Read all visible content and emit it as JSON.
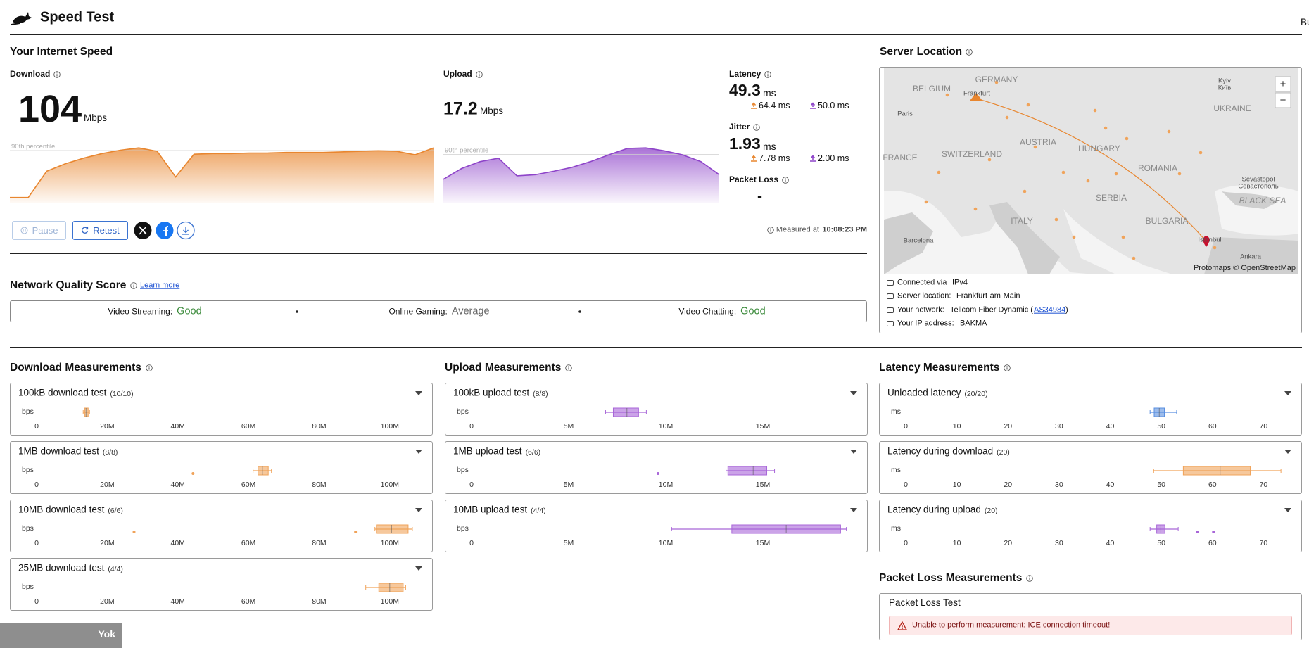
{
  "header": {
    "title": "Speed Test",
    "tagline": "Built with Cloudflare Developer Platform"
  },
  "speed": {
    "title": "Your Internet Speed",
    "download": {
      "label": "Download",
      "value": 104,
      "unit": "Mbps",
      "percentile_label": "90th percentile",
      "p90": 91,
      "ylim": [
        0,
        100
      ],
      "color": "#e8862f",
      "trend": [
        9,
        9,
        55,
        68,
        78,
        86,
        92,
        96,
        90,
        45,
        85,
        86,
        86,
        87,
        87,
        88,
        88,
        88,
        89,
        90,
        91,
        90,
        84,
        96
      ]
    },
    "upload": {
      "label": "Upload",
      "value": 17.2,
      "unit": "Mbps",
      "percentile_label": "90th percentile",
      "p90": 84,
      "ylim": [
        0,
        100
      ],
      "color": "#8e44c9",
      "trend": [
        41,
        60,
        72,
        78,
        47,
        49,
        55,
        62,
        72,
        84,
        95,
        96,
        91,
        84,
        72,
        49
      ]
    },
    "latency": {
      "label": "Latency",
      "value": 49.3,
      "unit": "ms",
      "down": "64.4 ms",
      "up": "50.0 ms"
    },
    "jitter": {
      "label": "Jitter",
      "value": 1.93,
      "unit": "ms",
      "down": "7.78 ms",
      "up": "2.00 ms"
    },
    "packet_loss": {
      "label": "Packet Loss",
      "value": "-"
    },
    "buttons": {
      "pause": "Pause",
      "retest": "Retest"
    },
    "measured_label": "Measured at",
    "measured_time": "10:08:23 PM"
  },
  "quality": {
    "title": "Network Quality Score",
    "link": "Learn more",
    "items": [
      {
        "label": "Video Streaming:",
        "value": "Good",
        "color": "#3a8a3a"
      },
      {
        "label": "Online Gaming:",
        "value": "Average",
        "color": "#666666"
      },
      {
        "label": "Video Chatting:",
        "value": "Good",
        "color": "#3a8a3a"
      }
    ]
  },
  "server": {
    "title": "Server Location",
    "map": {
      "labels": [
        "BELGIUM",
        "GERMANY",
        "Frankfurt",
        "Kyiv",
        "Київ",
        "UKRAINE",
        "Paris",
        "AUSTRIA",
        "HUNGARY",
        "FRANCE",
        "SWITZERLAND",
        "ROMANIA",
        "Sevastopol",
        "Севастополь",
        "BLACK SEA",
        "SERBIA",
        "ITALY",
        "BULGARIA",
        "Istanbul",
        "Barcelona",
        "Ankara"
      ],
      "zoom_in": "+",
      "zoom_out": "−",
      "attribution": "Protomaps © OpenStreetMap"
    },
    "info": [
      {
        "label": "Connected via",
        "value": "IPv4"
      },
      {
        "label": "Server location:",
        "value": "Frankfurt-am-Main"
      },
      {
        "label": "Your network:",
        "value": "Tellcom Fiber Dynamic (",
        "link": "AS34984",
        "suffix": ")"
      },
      {
        "label": "Your IP address:",
        "value": "BAKMA"
      }
    ]
  },
  "measurements": [
    {
      "title": "Download Measurements",
      "unit": "bps",
      "xlim": [
        0,
        110000000
      ],
      "xticks": [
        0,
        {
          "value": 20000000,
          "label": "20M"
        },
        {
          "value": 40000000,
          "label": "40M"
        },
        {
          "value": 60000000,
          "label": "60M"
        },
        {
          "value": 80000000,
          "label": "80M"
        },
        {
          "value": 100000000,
          "label": "100M"
        }
      ],
      "tests": [
        {
          "name": "100kB download test",
          "count": "(10/10)",
          "color": "#f0a35a",
          "box": [
            13200000,
            13600000,
            14000000,
            14600000,
            15000000
          ],
          "outliers": []
        },
        {
          "name": "1MB download test",
          "count": "(8/8)",
          "color": "#f0a35a",
          "box": [
            61300000,
            62700000,
            64000000,
            65600000,
            66500000
          ],
          "outliers": [
            44300000
          ]
        },
        {
          "name": "10MB download test",
          "count": "(6/6)",
          "color": "#f0a35a",
          "box": [
            95800000,
            96200000,
            100500000,
            105200000,
            106400000
          ],
          "outliers": [
            27600000,
            90300000
          ]
        },
        {
          "name": "25MB download test",
          "count": "(4/4)",
          "color": "#f0a35a",
          "box": [
            93200000,
            96900000,
            100000000,
            103800000,
            104500000
          ],
          "outliers": []
        }
      ]
    },
    {
      "title": "Upload Measurements",
      "unit": "bps",
      "xlim": [
        0,
        20000000
      ],
      "xticks": [
        0,
        {
          "value": 5000000,
          "label": "5M"
        },
        {
          "value": 10000000,
          "label": "10M"
        },
        {
          "value": 15000000,
          "label": "15M"
        }
      ],
      "tests": [
        {
          "name": "100kB upload test",
          "count": "(8/8)",
          "color": "#a866d8",
          "box": [
            6900000,
            7300000,
            8000000,
            8600000,
            9000000
          ],
          "outliers": []
        },
        {
          "name": "1MB upload test",
          "count": "(6/6)",
          "color": "#a866d8",
          "box": [
            13100000,
            13200000,
            14500000,
            15200000,
            15600000
          ],
          "outliers": [
            9600000
          ]
        },
        {
          "name": "10MB upload test",
          "count": "(4/4)",
          "color": "#a866d8",
          "box": [
            10300000,
            13400000,
            16200000,
            19000000,
            19300000
          ],
          "outliers": []
        }
      ]
    },
    {
      "title": "Latency Measurements",
      "unit": "ms",
      "xlim": [
        0,
        76
      ],
      "xticks": [
        0,
        10,
        20,
        30,
        40,
        50,
        60,
        70
      ],
      "tests": [
        {
          "name": "Unloaded latency",
          "count": "(20/20)",
          "color": "#5a8fe0",
          "box": [
            47.8,
            48.6,
            49.6,
            50.6,
            53.0
          ],
          "outliers": []
        },
        {
          "name": "Latency during download",
          "count": "(20)",
          "color": "#f0a35a",
          "box": [
            48.5,
            54.3,
            61.5,
            67.4,
            73.4
          ],
          "outliers": []
        },
        {
          "name": "Latency during upload",
          "count": "(20)",
          "color": "#a866d8",
          "box": [
            47.8,
            49.1,
            49.9,
            50.7,
            53.3
          ],
          "outliers": [
            57.1,
            60.2
          ]
        }
      ]
    }
  ],
  "packet_loss_measurements": {
    "title": "Packet Loss Measurements",
    "test": "Packet Loss Test",
    "error": "Unable to perform measurement: ICE connection timeout!"
  },
  "footer_badge": "Yok"
}
